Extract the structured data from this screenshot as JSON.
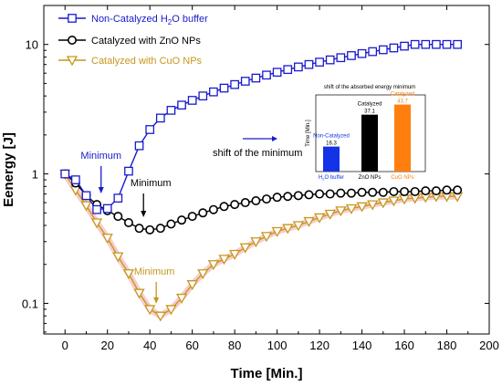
{
  "chart_data": {
    "type": "line",
    "xlabel": "Time [Min.]",
    "ylabel": "Eenergy [J]",
    "xlim": [
      -10,
      200
    ],
    "ylim": [
      0.058,
      20
    ],
    "y_scale": "log",
    "x_ticks": [
      "0",
      "20",
      "40",
      "60",
      "80",
      "100",
      "120",
      "140",
      "160",
      "180",
      "200"
    ],
    "y_ticks": [
      "0.1",
      "1",
      "10"
    ],
    "legend_position": "top-left",
    "series": [
      {
        "name_parts": [
          "Non-Catalyzed H",
          "2",
          "O buffer"
        ],
        "color": "#1a1acc",
        "marker": "square",
        "x": [
          0,
          5,
          10,
          15,
          20,
          25,
          30,
          35,
          40,
          45,
          50,
          55,
          60,
          65,
          70,
          75,
          80,
          85,
          90,
          95,
          100,
          105,
          110,
          115,
          120,
          125,
          130,
          135,
          140,
          145,
          150,
          155,
          160,
          165,
          170,
          175,
          180,
          185
        ],
        "y": [
          1.0,
          0.9,
          0.68,
          0.53,
          0.54,
          0.65,
          1.05,
          1.65,
          2.2,
          2.7,
          3.1,
          3.4,
          3.7,
          4.0,
          4.3,
          4.6,
          4.9,
          5.2,
          5.5,
          5.8,
          6.1,
          6.4,
          6.7,
          7.0,
          7.3,
          7.6,
          7.9,
          8.2,
          8.5,
          8.8,
          9.1,
          9.4,
          9.7,
          10.0,
          10.0,
          10.0,
          10.0,
          10.0
        ]
      },
      {
        "name": "Catalyzed with ZnO NPs",
        "color": "#000000",
        "marker": "circle",
        "x": [
          0,
          5,
          10,
          15,
          20,
          25,
          30,
          35,
          40,
          45,
          50,
          55,
          60,
          65,
          70,
          75,
          80,
          85,
          90,
          95,
          100,
          105,
          110,
          115,
          120,
          125,
          130,
          135,
          140,
          145,
          150,
          155,
          160,
          165,
          170,
          175,
          180,
          185
        ],
        "y": [
          1.0,
          0.85,
          0.68,
          0.58,
          0.52,
          0.47,
          0.42,
          0.38,
          0.37,
          0.38,
          0.41,
          0.44,
          0.47,
          0.5,
          0.53,
          0.56,
          0.58,
          0.6,
          0.62,
          0.64,
          0.66,
          0.67,
          0.68,
          0.69,
          0.7,
          0.7,
          0.71,
          0.71,
          0.72,
          0.72,
          0.72,
          0.73,
          0.73,
          0.73,
          0.74,
          0.74,
          0.75,
          0.75
        ]
      },
      {
        "name": "Catalyzed with CuO NPs",
        "color": "#c8961e",
        "marker": "triangle-down",
        "x": [
          0,
          5,
          10,
          15,
          20,
          25,
          30,
          35,
          40,
          45,
          50,
          55,
          60,
          65,
          70,
          75,
          80,
          85,
          90,
          95,
          100,
          105,
          110,
          115,
          120,
          125,
          130,
          135,
          140,
          145,
          150,
          155,
          160,
          165,
          170,
          175,
          180,
          185
        ],
        "y": [
          1.0,
          0.75,
          0.57,
          0.42,
          0.32,
          0.23,
          0.17,
          0.12,
          0.09,
          0.08,
          0.09,
          0.11,
          0.14,
          0.17,
          0.2,
          0.22,
          0.24,
          0.27,
          0.3,
          0.33,
          0.36,
          0.38,
          0.4,
          0.43,
          0.46,
          0.49,
          0.52,
          0.54,
          0.56,
          0.58,
          0.6,
          0.62,
          0.64,
          0.65,
          0.66,
          0.67,
          0.67,
          0.67
        ]
      }
    ],
    "annotations": [
      {
        "text": "Minimum",
        "color": "#1a1acc",
        "x": 17,
        "y": 0.62
      },
      {
        "text": "Minimum",
        "color": "#000000",
        "x": 37,
        "y": 0.42
      },
      {
        "text": "Minimum",
        "color": "#c8961e",
        "x": 43,
        "y": 0.09
      },
      {
        "text": "shift of the minimum",
        "color": "#000000"
      }
    ],
    "inset": {
      "type": "bar",
      "title": "shift of the absorbed energy minimum",
      "ylabel": "Time [Min.]",
      "ylim": [
        0,
        50
      ],
      "categories": [
        "H2O buffer",
        "ZnO NPs",
        "CuO NPs"
      ],
      "category_parts": [
        [
          "H",
          "2",
          "O buffer"
        ],
        [
          "ZnO NPs"
        ],
        [
          "CuO NPs"
        ]
      ],
      "values": [
        16.3,
        37.1,
        43.7
      ],
      "value_labels": [
        "16.3",
        "37.1",
        "43.7"
      ],
      "bar_tags": [
        "Non-Catalyzed",
        "Catalyzed",
        "Catalyzed"
      ],
      "colors": [
        "#1432e6",
        "#000000",
        "#ff7f0e"
      ]
    }
  }
}
